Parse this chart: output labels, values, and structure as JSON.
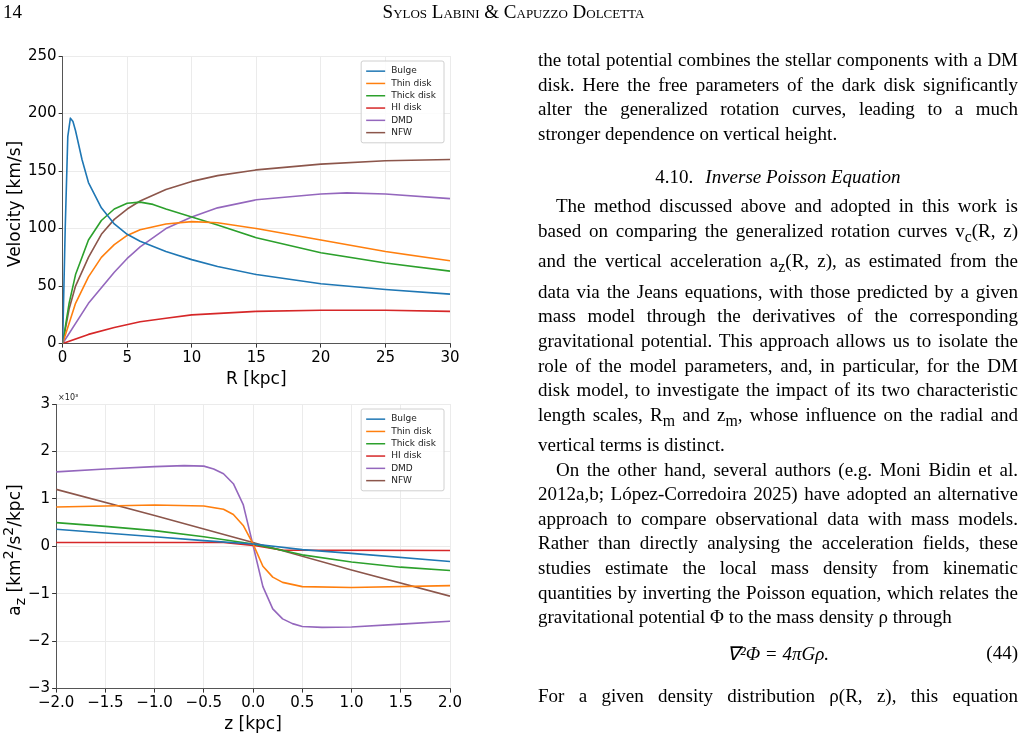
{
  "chart_data": [
    {
      "type": "line",
      "xlabel": "R [kpc]",
      "ylabel": "Velocity [km/s]",
      "xlim": [
        0,
        30
      ],
      "ylim": [
        0,
        250
      ],
      "xticks": [
        0,
        5,
        10,
        15,
        20,
        25,
        30
      ],
      "yticks": [
        0,
        50,
        100,
        150,
        200,
        250
      ],
      "grid": true,
      "legend": "top right",
      "series": [
        {
          "name": "Bulge",
          "color": "#1f77b4",
          "x": [
            0,
            0.2,
            0.4,
            0.6,
            0.8,
            1,
            1.5,
            2,
            3,
            4,
            5,
            6,
            8,
            10,
            12,
            15,
            20,
            25,
            30
          ],
          "values": [
            0,
            100,
            180,
            196,
            193,
            185,
            160,
            140,
            118,
            104,
            95,
            89,
            80,
            73,
            67,
            60,
            52,
            47,
            43
          ]
        },
        {
          "name": "Thin disk",
          "color": "#ff7f0e",
          "x": [
            0,
            1,
            2,
            3,
            4,
            5,
            6,
            8,
            10,
            12,
            15,
            20,
            25,
            30
          ],
          "values": [
            0,
            35,
            58,
            75,
            86,
            94,
            99,
            104,
            106,
            105,
            100,
            90,
            80,
            72
          ]
        },
        {
          "name": "Thick disk",
          "color": "#2ca02c",
          "x": [
            0,
            0.5,
            1,
            2,
            3,
            4,
            5,
            6,
            7,
            8,
            10,
            12,
            15,
            20,
            25,
            30
          ],
          "values": [
            0,
            35,
            60,
            90,
            107,
            117,
            122,
            123,
            121,
            117,
            110,
            103,
            92,
            79,
            70,
            63
          ]
        },
        {
          "name": "HI disk",
          "color": "#d62728",
          "x": [
            0,
            2,
            4,
            6,
            8,
            10,
            15,
            20,
            25,
            30
          ],
          "values": [
            0,
            8,
            14,
            19,
            22,
            25,
            28,
            29,
            29,
            28
          ]
        },
        {
          "name": "DMD",
          "color": "#9467bd",
          "x": [
            0,
            2,
            4,
            5,
            6,
            8,
            10,
            12,
            15,
            20,
            22,
            25,
            30
          ],
          "values": [
            0,
            35,
            62,
            74,
            84,
            100,
            110,
            118,
            125,
            130,
            131,
            130,
            126
          ]
        },
        {
          "name": "NFW",
          "color": "#8c564b",
          "x": [
            0,
            0.5,
            1,
            2,
            3,
            4,
            5,
            6,
            8,
            10,
            12,
            15,
            20,
            25,
            30
          ],
          "values": [
            0,
            30,
            50,
            75,
            95,
            108,
            117,
            124,
            134,
            141,
            146,
            151,
            156,
            159,
            160
          ]
        }
      ]
    },
    {
      "type": "line",
      "xlabel": "z [kpc]",
      "ylabel": "a$_{z}$ [km$^{2}$/s$^{2}$/kpc]",
      "annotations": [
        "×10³"
      ],
      "xlim": [
        -2,
        2
      ],
      "ylim": [
        -3,
        3
      ],
      "xticks": [
        {
          "value": -2,
          "label": "−2.0"
        },
        {
          "value": -1.5,
          "label": "−1.5"
        },
        {
          "value": -1,
          "label": "−1.0"
        },
        {
          "value": -0.5,
          "label": "−0.5"
        },
        {
          "value": 0,
          "label": "0.0"
        },
        0.5,
        {
          "value": 1,
          "label": "1.0"
        },
        1.5,
        {
          "value": 2,
          "label": "2.0"
        }
      ],
      "yticks": [
        {
          "value": -3,
          "label": "−3"
        },
        {
          "value": -2,
          "label": "−2"
        },
        {
          "value": -1,
          "label": "−1"
        },
        0,
        1,
        2,
        3
      ],
      "grid": true,
      "legend": "top right",
      "series": [
        {
          "name": "Bulge",
          "color": "#1f77b4",
          "x": [
            -2,
            -1,
            -0.5,
            0,
            0.5,
            1,
            2
          ],
          "values": [
            0.36,
            0.2,
            0.12,
            0.05,
            -0.07,
            -0.15,
            -0.32
          ]
        },
        {
          "name": "Thin disk",
          "color": "#ff7f0e",
          "x": [
            -2,
            -1,
            -0.5,
            -0.3,
            -0.2,
            -0.1,
            0,
            0.1,
            0.2,
            0.3,
            0.5,
            1,
            2
          ],
          "values": [
            0.83,
            0.87,
            0.85,
            0.78,
            0.67,
            0.44,
            0.05,
            -0.42,
            -0.65,
            -0.76,
            -0.85,
            -0.87,
            -0.83
          ]
        },
        {
          "name": "Thick disk",
          "color": "#2ca02c",
          "x": [
            -2,
            -1.5,
            -1,
            -0.5,
            0,
            0.5,
            1,
            1.5,
            2
          ],
          "values": [
            0.5,
            0.42,
            0.33,
            0.2,
            0.05,
            -0.18,
            -0.33,
            -0.44,
            -0.51
          ]
        },
        {
          "name": "HI disk",
          "color": "#d62728",
          "x": [
            -2,
            -0.3,
            0,
            0.3,
            2
          ],
          "values": [
            0.08,
            0.08,
            0.02,
            -0.08,
            -0.09
          ]
        },
        {
          "name": "DMD",
          "color": "#9467bd",
          "x": [
            -2,
            -1.5,
            -1,
            -0.7,
            -0.5,
            -0.4,
            -0.3,
            -0.2,
            -0.1,
            0,
            0.1,
            0.2,
            0.3,
            0.4,
            0.5,
            0.7,
            1,
            1.5,
            2
          ],
          "values": [
            1.57,
            1.63,
            1.68,
            1.7,
            1.69,
            1.63,
            1.53,
            1.32,
            0.88,
            0.02,
            -0.85,
            -1.32,
            -1.53,
            -1.63,
            -1.69,
            -1.71,
            -1.7,
            -1.64,
            -1.58
          ]
        },
        {
          "name": "NFW",
          "color": "#8c564b",
          "x": [
            -2,
            -1,
            0,
            1,
            2
          ],
          "values": [
            1.2,
            0.65,
            0.08,
            -0.5,
            -1.05
          ]
        }
      ]
    },
    {
      "type": "other",
      "annotations": [
        "14",
        "Sylos Labini & Capuzzo Dolcetta",
        "the total potential combines the stellar components with a DM disk. Here the free parameters of the dark disk significantly alter the generalized rotation curves, leading to a much stronger dependence on vertical height.",
        "4.10.",
        "Inverse Poisson Equation",
        "The method discussed above and adopted in this work is based on comparing the generalized rotation curves v$_{c}$(R, z) and the vertical acceleration a$_{z}$(R, z), as estimated from the data via the Jeans equations, with those predicted by a given mass model through the derivatives of the corresponding gravitational potential. This approach allows us to isolate the role of the model parameters, and, in particular, for the DM disk model, to investigate the impact of its two characteristic length scales, R$_{m}$ and z$_{m}$, whose influence on the radial and vertical terms is distinct.",
        "On the other hand, several authors (e.g. Moni Bidin et al. 2012a,b; López-Corredoira 2025) have adopted an alternative approach to compare observational data with mass models. Rather than directly analysing the acceleration fields, these studies estimate the local mass density from kinematic quantities by inverting the Poisson equation, which relates the gravitational potential Φ to the mass density ρ through",
        "∇²Φ = 4πGρ.",
        "(44)",
        "For a given density distribution ρ(R, z), this equation"
      ]
    }
  ]
}
